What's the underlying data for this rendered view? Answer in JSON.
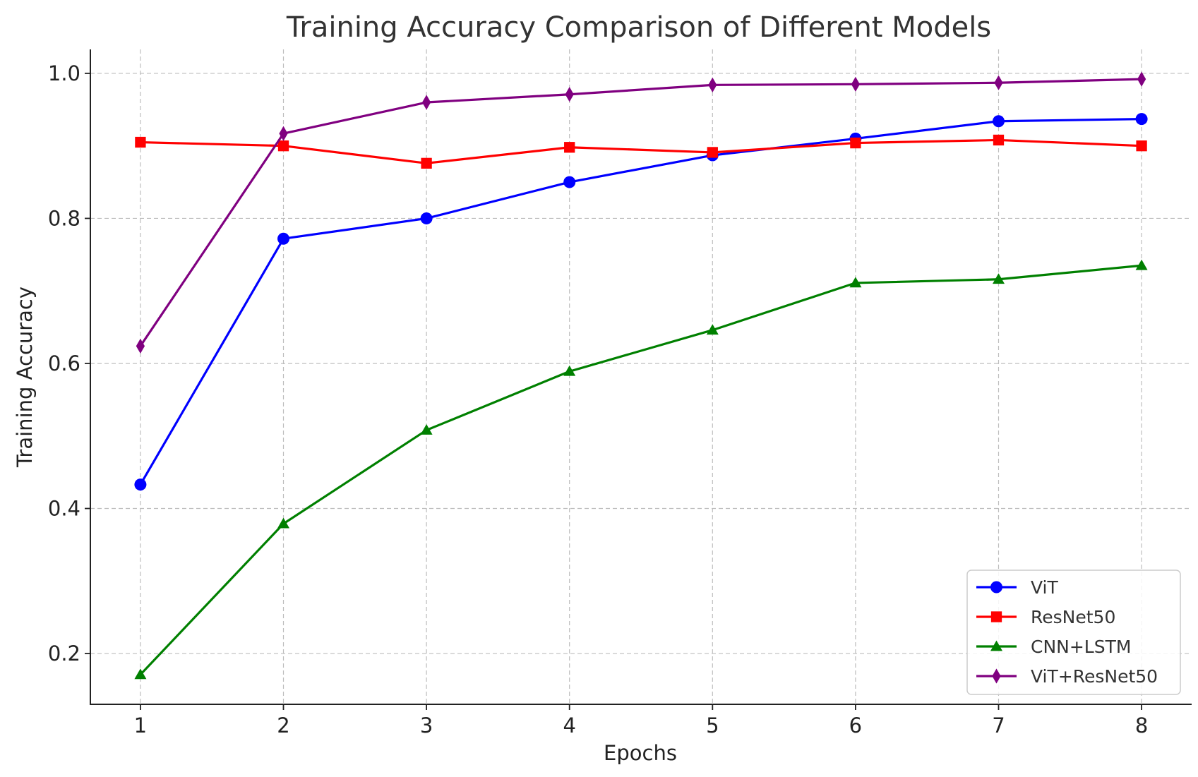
{
  "chart_data": {
    "type": "line",
    "title": "Training Accuracy Comparison of Different Models",
    "xlabel": "Epochs",
    "ylabel": "Training Accuracy",
    "x": [
      1,
      2,
      3,
      4,
      5,
      6,
      7,
      8
    ],
    "xlim": [
      0.65,
      8.35
    ],
    "ylim": [
      0.13,
      1.033
    ],
    "xticks": [
      1,
      2,
      3,
      4,
      5,
      6,
      7,
      8
    ],
    "yticks": [
      0.2,
      0.4,
      0.6,
      0.8,
      1.0
    ],
    "ytick_labels": [
      "0.2",
      "0.4",
      "0.6",
      "0.8",
      "1.0"
    ],
    "grid": true,
    "legend_position": "lower-right",
    "series": [
      {
        "name": "ViT",
        "color": "#0000ff",
        "marker": "circle",
        "values": [
          0.433,
          0.772,
          0.8,
          0.85,
          0.887,
          0.91,
          0.934,
          0.937
        ]
      },
      {
        "name": "ResNet50",
        "color": "#ff0000",
        "marker": "square",
        "values": [
          0.905,
          0.9,
          0.876,
          0.898,
          0.891,
          0.904,
          0.908,
          0.9
        ]
      },
      {
        "name": "CNN+LSTM",
        "color": "#008000",
        "marker": "triangle",
        "values": [
          0.171,
          0.379,
          0.508,
          0.589,
          0.646,
          0.711,
          0.716,
          0.735
        ]
      },
      {
        "name": "ViT+ResNet50",
        "color": "#800080",
        "marker": "diamond",
        "values": [
          0.624,
          0.917,
          0.96,
          0.971,
          0.984,
          0.985,
          0.987,
          0.992
        ]
      }
    ]
  }
}
